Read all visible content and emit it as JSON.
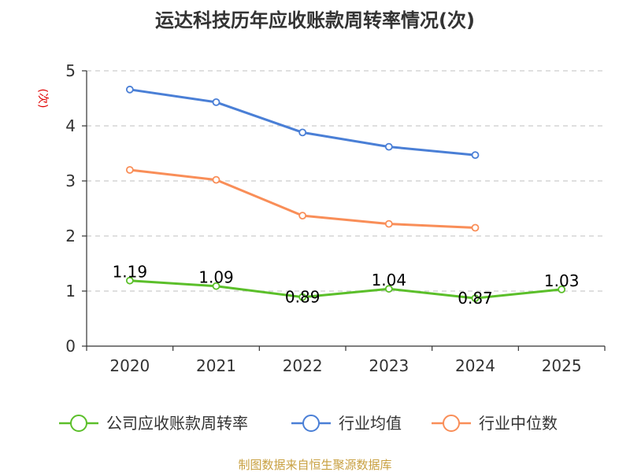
{
  "chart_data": {
    "type": "line",
    "title": "运达科技历年应收账款周转率情况(次)",
    "ylabel": "(次)",
    "xlabel": "",
    "categories": [
      "2020",
      "2021",
      "2022",
      "2023",
      "2024",
      "2025"
    ],
    "ylim": [
      0,
      5
    ],
    "yticks": [
      0,
      1,
      2,
      3,
      4,
      5
    ],
    "grid": true,
    "legend_position": "bottom",
    "series": [
      {
        "name": "公司应收账款周转率",
        "color": "#5bbf2a",
        "values": [
          1.19,
          1.09,
          0.89,
          1.04,
          0.87,
          1.03
        ],
        "labels": [
          "1.19",
          "1.09",
          "0.89",
          "1.04",
          "0.87",
          "1.03"
        ]
      },
      {
        "name": "行业均值",
        "color": "#4a7fd6",
        "values": [
          4.66,
          4.43,
          3.88,
          3.62,
          3.47,
          null
        ]
      },
      {
        "name": "行业中位数",
        "color": "#f98e58",
        "values": [
          3.2,
          3.02,
          2.37,
          2.22,
          2.15,
          null
        ]
      }
    ]
  },
  "footer": {
    "source": "制图数据来自恒生聚源数据库"
  }
}
